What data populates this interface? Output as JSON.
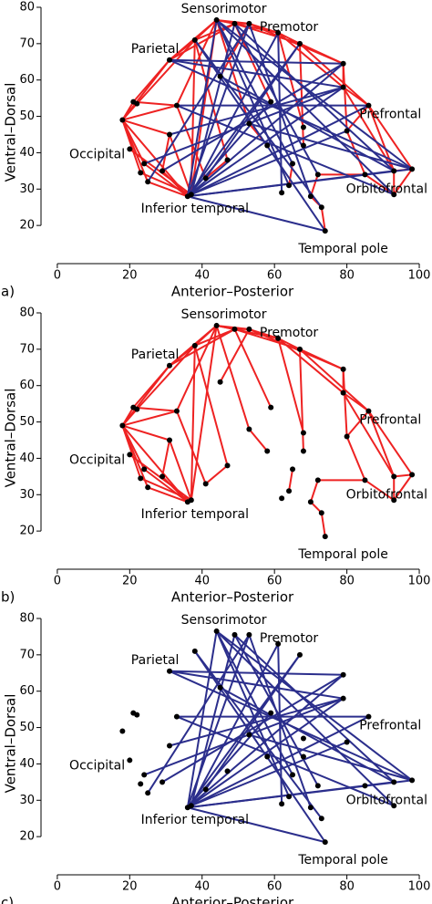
{
  "chart_data": [
    {
      "type": "network",
      "panel": "a)",
      "xlabel": "Anterior–Posterior",
      "ylabel": "Ventral–Dorsal",
      "xlim": [
        -4,
        101
      ],
      "ylim": [
        10,
        81
      ],
      "xticks": [
        0,
        20,
        40,
        60,
        80,
        100
      ],
      "yticks": [
        20,
        30,
        40,
        50,
        60,
        70,
        80
      ],
      "annotations": [
        "Sensorimotor",
        "Premotor",
        "Parietal",
        "Prefrontal",
        "Occipital",
        "Inferior temporal",
        "Orbitofrontal",
        "Temporal pole"
      ],
      "node_color": "#000000",
      "x": [
        18,
        21,
        22,
        24,
        23,
        25,
        20,
        31,
        33,
        36,
        37,
        38,
        44,
        49,
        53,
        61,
        67,
        79,
        79,
        86,
        80,
        93,
        98,
        93,
        85,
        73,
        70,
        74,
        62,
        64,
        68,
        65,
        58,
        53,
        47,
        41,
        31,
        29,
        59,
        45,
        72,
        68
      ],
      "y": [
        49,
        54,
        53.5,
        37,
        34.5,
        32,
        41,
        65.5,
        53,
        28,
        28.5,
        71,
        76.5,
        75.5,
        75.5,
        73,
        70,
        64.5,
        58,
        53,
        46,
        35,
        35.5,
        28.5,
        34,
        25,
        28,
        18.5,
        29,
        31,
        42,
        37,
        42,
        48,
        38,
        33,
        45,
        35,
        54,
        61,
        34,
        47
      ],
      "edges": [
        {
          "color": "#ee2222",
          "pairs": [
            [
              0,
              1
            ],
            [
              0,
              2
            ],
            [
              0,
              3
            ],
            [
              0,
              4
            ],
            [
              0,
              5
            ],
            [
              0,
              7
            ],
            [
              0,
              8
            ],
            [
              0,
              9
            ],
            [
              0,
              36
            ],
            [
              1,
              7
            ],
            [
              1,
              8
            ],
            [
              2,
              11
            ],
            [
              3,
              9
            ],
            [
              4,
              10
            ],
            [
              5,
              9
            ],
            [
              6,
              10
            ],
            [
              7,
              11
            ],
            [
              7,
              12
            ],
            [
              7,
              13
            ],
            [
              8,
              12
            ],
            [
              8,
              35
            ],
            [
              9,
              10
            ],
            [
              9,
              37
            ],
            [
              10,
              11
            ],
            [
              10,
              12
            ],
            [
              11,
              12
            ],
            [
              11,
              13
            ],
            [
              12,
              13
            ],
            [
              12,
              14
            ],
            [
              12,
              15
            ],
            [
              13,
              14
            ],
            [
              13,
              16
            ],
            [
              14,
              15
            ],
            [
              14,
              17
            ],
            [
              15,
              16
            ],
            [
              15,
              18
            ],
            [
              16,
              17
            ],
            [
              16,
              19
            ],
            [
              17,
              18
            ],
            [
              17,
              20
            ],
            [
              18,
              19
            ],
            [
              18,
              21
            ],
            [
              19,
              20
            ],
            [
              19,
              22
            ],
            [
              19,
              21
            ],
            [
              20,
              24
            ],
            [
              21,
              22
            ],
            [
              21,
              23
            ],
            [
              22,
              23
            ],
            [
              23,
              24
            ],
            [
              24,
              40
            ],
            [
              26,
              40
            ],
            [
              25,
              27
            ],
            [
              26,
              25
            ],
            [
              12,
              33
            ],
            [
              13,
              38
            ],
            [
              14,
              39
            ],
            [
              11,
              34
            ],
            [
              15,
              41
            ],
            [
              16,
              30
            ],
            [
              36,
              37
            ],
            [
              35,
              34
            ],
            [
              32,
              33
            ],
            [
              29,
              31
            ],
            [
              10,
              36
            ]
          ]
        },
        {
          "color": "#2b2e8c",
          "pairs": [
            [
              9,
              12
            ],
            [
              9,
              14
            ],
            [
              9,
              16
            ],
            [
              9,
              17
            ],
            [
              9,
              18
            ],
            [
              9,
              19
            ],
            [
              9,
              21
            ],
            [
              9,
              22
            ],
            [
              9,
              27
            ],
            [
              10,
              13
            ],
            [
              10,
              15
            ],
            [
              10,
              20
            ],
            [
              12,
              22
            ],
            [
              12,
              23
            ],
            [
              13,
              21
            ],
            [
              7,
              17
            ],
            [
              7,
              18
            ],
            [
              7,
              22
            ],
            [
              8,
              19
            ],
            [
              8,
              23
            ],
            [
              11,
              27
            ],
            [
              14,
              26
            ],
            [
              15,
              28
            ],
            [
              16,
              35
            ],
            [
              17,
              37
            ],
            [
              12,
              31
            ],
            [
              13,
              40
            ],
            [
              18,
              36
            ],
            [
              39,
              21
            ],
            [
              38,
              9
            ],
            [
              11,
              25
            ],
            [
              5,
              14
            ],
            [
              3,
              18
            ],
            [
              33,
              22
            ],
            [
              12,
              29
            ]
          ]
        }
      ]
    },
    {
      "type": "network",
      "panel": "b)",
      "xlabel": "Anterior–Posterior",
      "ylabel": "Ventral–Dorsal",
      "xlim": [
        -4,
        101
      ],
      "ylim": [
        10,
        81
      ],
      "xticks": [
        0,
        20,
        40,
        60,
        80,
        100
      ],
      "yticks": [
        20,
        30,
        40,
        50,
        60,
        70,
        80
      ],
      "annotations": [
        "Sensorimotor",
        "Premotor",
        "Parietal",
        "Prefrontal",
        "Occipital",
        "Inferior temporal",
        "Orbitofrontal",
        "Temporal pole"
      ],
      "node_color": "#000000",
      "x": [
        18,
        21,
        22,
        24,
        23,
        25,
        20,
        31,
        33,
        36,
        37,
        38,
        44,
        49,
        53,
        61,
        67,
        79,
        79,
        86,
        80,
        93,
        98,
        93,
        85,
        73,
        70,
        74,
        62,
        64,
        68,
        65,
        58,
        53,
        47,
        41,
        31,
        29,
        59,
        45,
        72,
        68
      ],
      "y": [
        49,
        54,
        53.5,
        37,
        34.5,
        32,
        41,
        65.5,
        53,
        28,
        28.5,
        71,
        76.5,
        75.5,
        75.5,
        73,
        70,
        64.5,
        58,
        53,
        46,
        35,
        35.5,
        28.5,
        34,
        25,
        28,
        18.5,
        29,
        31,
        42,
        37,
        42,
        48,
        38,
        33,
        45,
        35,
        54,
        61,
        34,
        47
      ],
      "edges": [
        {
          "color": "#ee2222",
          "pairs": [
            [
              0,
              1
            ],
            [
              0,
              2
            ],
            [
              0,
              3
            ],
            [
              0,
              4
            ],
            [
              0,
              5
            ],
            [
              0,
              7
            ],
            [
              0,
              8
            ],
            [
              0,
              9
            ],
            [
              0,
              36
            ],
            [
              1,
              7
            ],
            [
              1,
              8
            ],
            [
              2,
              11
            ],
            [
              3,
              9
            ],
            [
              4,
              10
            ],
            [
              5,
              9
            ],
            [
              6,
              10
            ],
            [
              7,
              11
            ],
            [
              7,
              12
            ],
            [
              7,
              13
            ],
            [
              8,
              12
            ],
            [
              8,
              35
            ],
            [
              9,
              10
            ],
            [
              9,
              37
            ],
            [
              10,
              11
            ],
            [
              10,
              12
            ],
            [
              11,
              12
            ],
            [
              11,
              13
            ],
            [
              12,
              13
            ],
            [
              12,
              14
            ],
            [
              12,
              15
            ],
            [
              13,
              14
            ],
            [
              13,
              16
            ],
            [
              14,
              15
            ],
            [
              14,
              17
            ],
            [
              15,
              16
            ],
            [
              15,
              18
            ],
            [
              16,
              17
            ],
            [
              16,
              19
            ],
            [
              17,
              18
            ],
            [
              17,
              20
            ],
            [
              18,
              19
            ],
            [
              18,
              21
            ],
            [
              19,
              20
            ],
            [
              19,
              22
            ],
            [
              19,
              21
            ],
            [
              20,
              24
            ],
            [
              21,
              22
            ],
            [
              21,
              23
            ],
            [
              22,
              23
            ],
            [
              23,
              24
            ],
            [
              24,
              40
            ],
            [
              26,
              40
            ],
            [
              25,
              27
            ],
            [
              26,
              25
            ],
            [
              12,
              33
            ],
            [
              13,
              38
            ],
            [
              14,
              39
            ],
            [
              11,
              34
            ],
            [
              15,
              41
            ],
            [
              16,
              30
            ],
            [
              36,
              37
            ],
            [
              35,
              34
            ],
            [
              32,
              33
            ],
            [
              29,
              31
            ],
            [
              10,
              36
            ]
          ]
        }
      ]
    },
    {
      "type": "network",
      "panel": "c)",
      "xlabel": "Anterior–Posterior",
      "ylabel": "Ventral–Dorsal",
      "xlim": [
        -4,
        101
      ],
      "ylim": [
        10,
        81
      ],
      "xticks": [
        0,
        20,
        40,
        60,
        80,
        100
      ],
      "yticks": [
        20,
        30,
        40,
        50,
        60,
        70,
        80
      ],
      "annotations": [
        "Sensorimotor",
        "Premotor",
        "Parietal",
        "Prefrontal",
        "Occipital",
        "Inferior temporal",
        "Orbitofrontal",
        "Temporal pole"
      ],
      "node_color": "#000000",
      "x": [
        18,
        21,
        22,
        24,
        23,
        25,
        20,
        31,
        33,
        36,
        37,
        38,
        44,
        49,
        53,
        61,
        67,
        79,
        79,
        86,
        80,
        93,
        98,
        93,
        85,
        73,
        70,
        74,
        62,
        64,
        68,
        65,
        58,
        53,
        47,
        41,
        31,
        29,
        59,
        45,
        72,
        68
      ],
      "y": [
        49,
        54,
        53.5,
        37,
        34.5,
        32,
        41,
        65.5,
        53,
        28,
        28.5,
        71,
        76.5,
        75.5,
        75.5,
        73,
        70,
        64.5,
        58,
        53,
        46,
        35,
        35.5,
        28.5,
        34,
        25,
        28,
        18.5,
        29,
        31,
        42,
        37,
        42,
        48,
        38,
        33,
        45,
        35,
        54,
        61,
        34,
        47
      ],
      "edges": [
        {
          "color": "#2b2e8c",
          "pairs": [
            [
              9,
              12
            ],
            [
              9,
              14
            ],
            [
              9,
              16
            ],
            [
              9,
              17
            ],
            [
              9,
              18
            ],
            [
              9,
              19
            ],
            [
              9,
              21
            ],
            [
              9,
              22
            ],
            [
              9,
              27
            ],
            [
              10,
              13
            ],
            [
              10,
              15
            ],
            [
              10,
              20
            ],
            [
              12,
              22
            ],
            [
              12,
              23
            ],
            [
              13,
              21
            ],
            [
              7,
              17
            ],
            [
              7,
              18
            ],
            [
              7,
              22
            ],
            [
              8,
              19
            ],
            [
              8,
              23
            ],
            [
              11,
              27
            ],
            [
              14,
              26
            ],
            [
              15,
              28
            ],
            [
              16,
              35
            ],
            [
              17,
              37
            ],
            [
              12,
              31
            ],
            [
              13,
              40
            ],
            [
              18,
              36
            ],
            [
              39,
              21
            ],
            [
              38,
              9
            ],
            [
              11,
              25
            ],
            [
              5,
              14
            ],
            [
              3,
              18
            ],
            [
              33,
              22
            ],
            [
              12,
              29
            ]
          ]
        }
      ]
    }
  ]
}
